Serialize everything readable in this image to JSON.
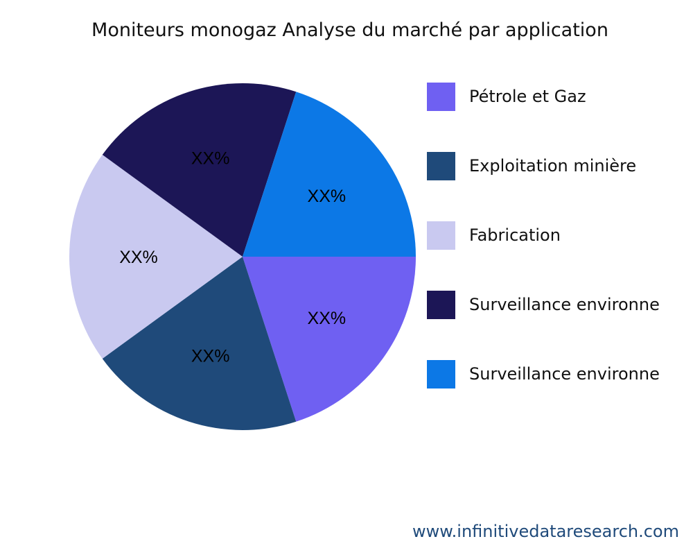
{
  "chart_data": {
    "type": "pie",
    "title": "Moniteurs monogaz Analyse du marché par application",
    "categories": [
      "Pétrole et Gaz",
      "Exploitation minière",
      "Fabrication",
      "Surveillance environne",
      "Surveillance environne"
    ],
    "values": [
      20,
      20,
      20,
      20,
      20
    ],
    "data_labels": [
      "XX%",
      "XX%",
      "XX%",
      "XX%",
      "XX%"
    ],
    "colors": [
      "#6f60f2",
      "#1f4a7a",
      "#c9c9f0",
      "#1c1656",
      "#0c78e6"
    ],
    "legend_position": "right"
  },
  "footer": "www.infinitivedataresearch.com"
}
